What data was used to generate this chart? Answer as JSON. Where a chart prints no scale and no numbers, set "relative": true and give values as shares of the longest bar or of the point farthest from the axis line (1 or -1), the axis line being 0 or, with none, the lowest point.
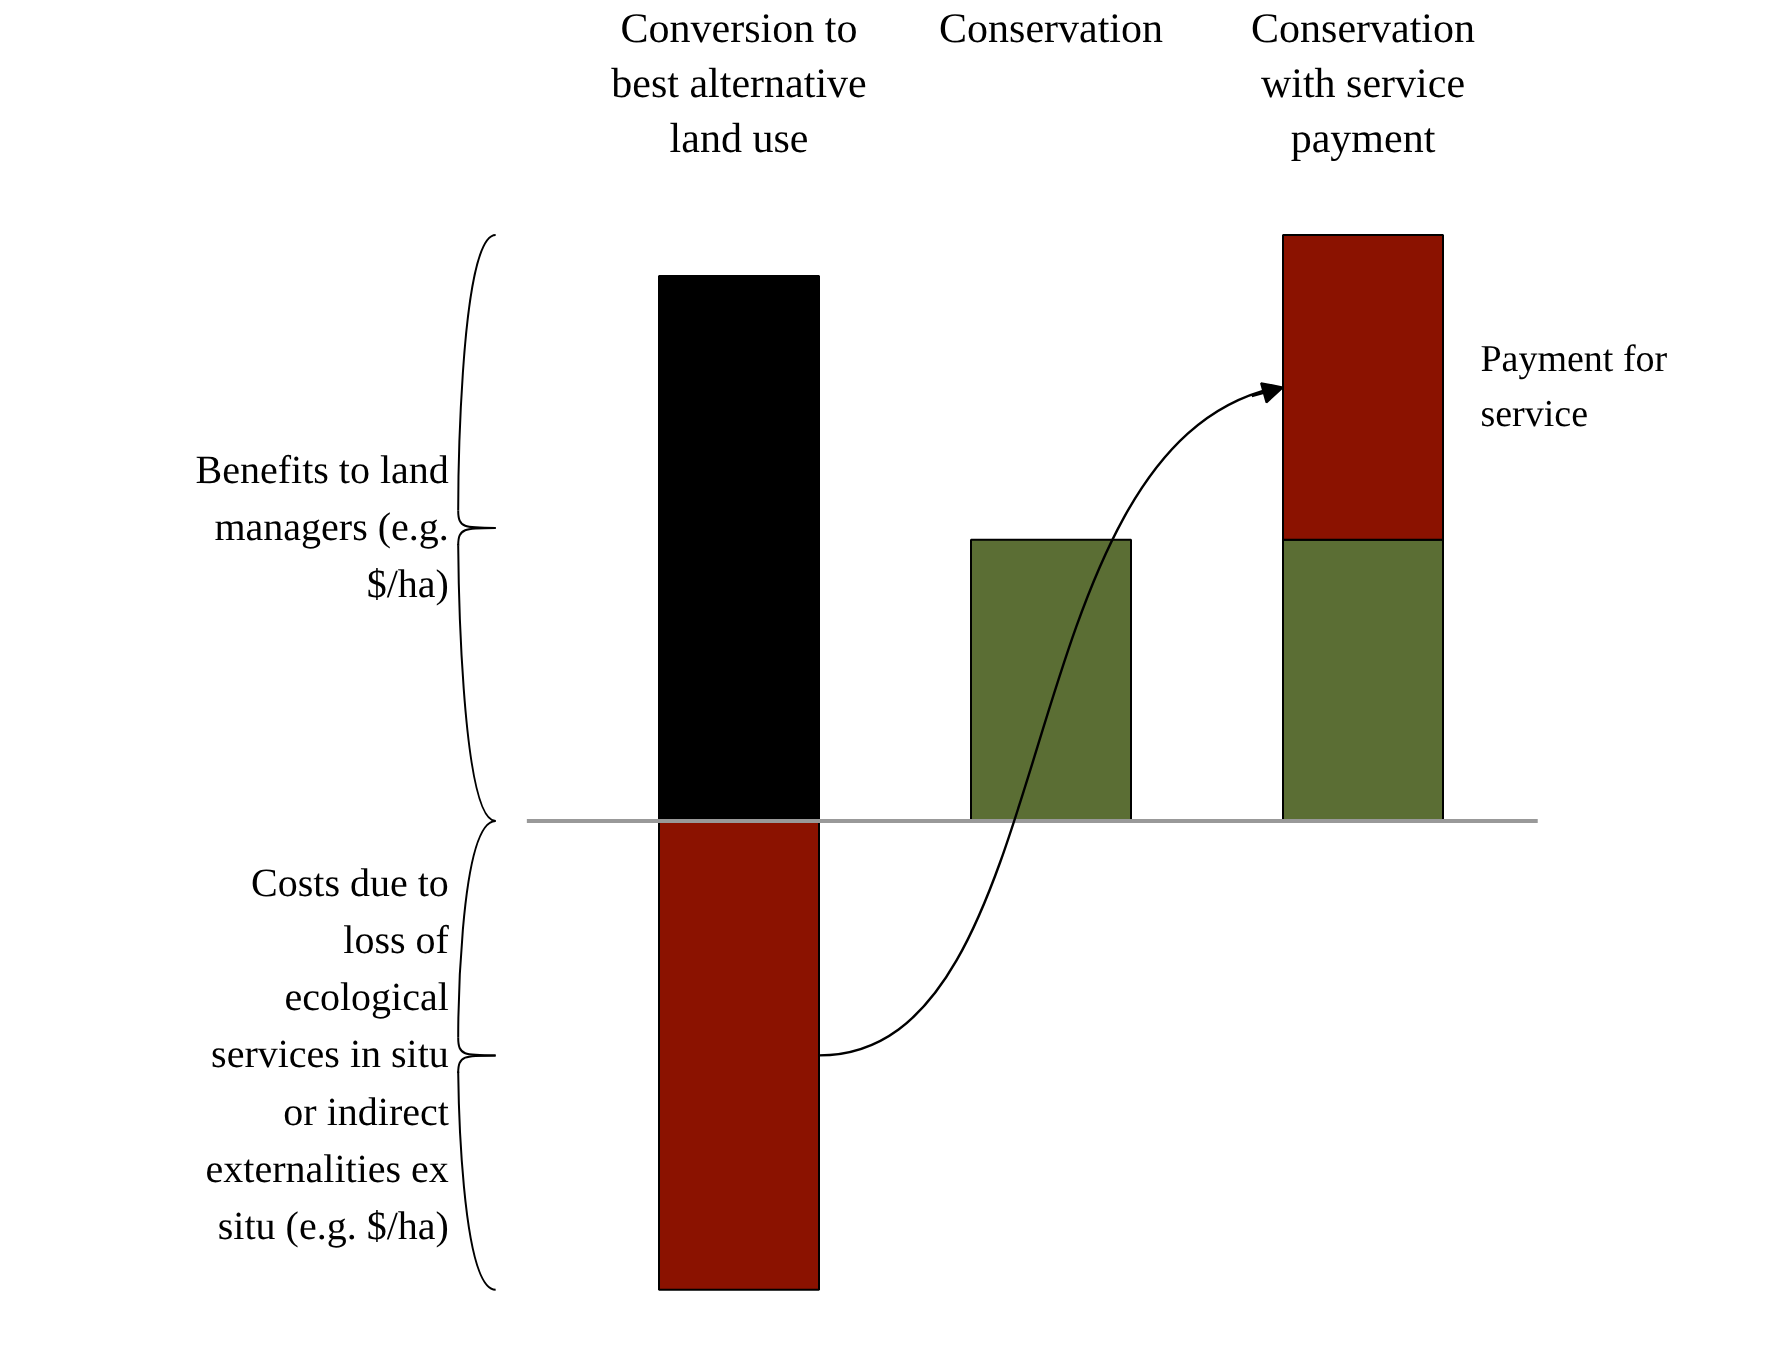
{
  "chart_data": {
    "type": "bar",
    "stacked": true,
    "relative": true,
    "categories": [
      "Conversion to best alternative land use",
      "Conservation",
      "Conservation with service payment"
    ],
    "series": [
      {
        "color": "#000000",
        "values": [
          0.93,
          null,
          null
        ]
      },
      {
        "color": "#5b6e34",
        "values": [
          null,
          0.48,
          0.48
        ]
      },
      {
        "color": "#8b1200",
        "values": [
          -0.8,
          null,
          0.52
        ]
      }
    ],
    "annotations": [
      "Benefits to land managers (e.g. $/ha)",
      "Costs due to loss of ecological services in situ or indirect externalities ex situ (e.g. $/ha)",
      "Payment for service"
    ],
    "grid": false
  }
}
